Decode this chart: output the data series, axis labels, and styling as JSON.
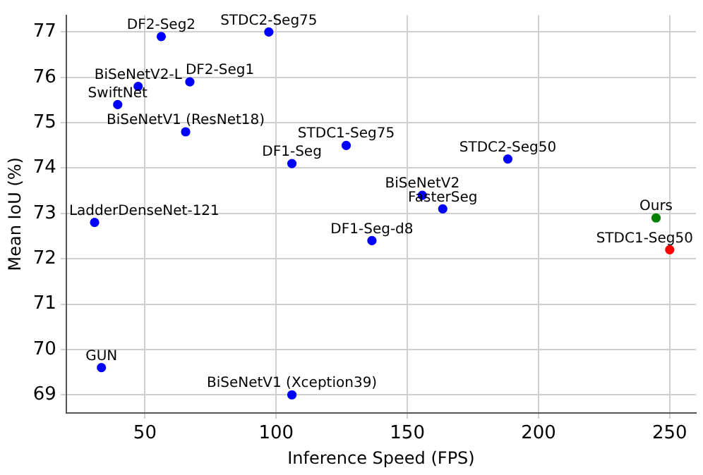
{
  "chart_data": {
    "type": "scatter",
    "xlabel": "Inference Speed (FPS)",
    "ylabel": "Mean IoU (%)",
    "xlim": [
      20,
      260
    ],
    "ylim": [
      68.6,
      77.37
    ],
    "xticks": [
      50,
      100,
      150,
      200,
      250
    ],
    "yticks": [
      69,
      70,
      71,
      72,
      73,
      74,
      75,
      76,
      77
    ],
    "grid": true,
    "legend": false,
    "marker": "circle",
    "series": [
      {
        "color": "#0000ff",
        "x": [
          56.2,
          97.2,
          47.4,
          67.1,
          39.6,
          65.5,
          126.7,
          106,
          188.3,
          30.8,
          155.7,
          163.5,
          136.5,
          33.4,
          106
        ],
        "values": [
          76.9,
          77.0,
          75.8,
          75.9,
          75.4,
          74.8,
          74.5,
          74.1,
          74.2,
          72.8,
          73.4,
          73.1,
          72.4,
          69.6,
          69.0
        ]
      },
      {
        "color": "#008000",
        "x": [
          244.8
        ],
        "values": [
          72.9
        ]
      },
      {
        "color": "#ff0000",
        "x": [
          250
        ],
        "values": [
          72.2
        ]
      }
    ],
    "annotations": [
      {
        "text": "DF2-Seg2",
        "x": 56.2,
        "y": 76.9
      },
      {
        "text": "STDC2-Seg75",
        "x": 97.2,
        "y": 77.0
      },
      {
        "text": "BiSeNetV2-L",
        "x": 47.4,
        "y": 75.8
      },
      {
        "text": "DF2-Seg1",
        "x": 67.1,
        "y": 75.9
      },
      {
        "text": "SwiftNet",
        "x": 39.6,
        "y": 75.4
      },
      {
        "text": "BiSeNetV1 (ResNet18)",
        "x": 65.5,
        "y": 74.8
      },
      {
        "text": "STDC1-Seg75",
        "x": 126.7,
        "y": 74.5
      },
      {
        "text": "DF1-Seg",
        "x": 106,
        "y": 74.1
      },
      {
        "text": "STDC2-Seg50",
        "x": 188.3,
        "y": 74.2
      },
      {
        "text": "LadderDenseNet-121",
        "x": 30.8,
        "y": 72.8
      },
      {
        "text": "BiSeNetV2",
        "x": 155.7,
        "y": 73.4
      },
      {
        "text": "FasterSeg",
        "x": 163.5,
        "y": 73.1
      },
      {
        "text": "DF1-Seg-d8",
        "x": 136.5,
        "y": 72.4
      },
      {
        "text": "GUN",
        "x": 33.4,
        "y": 69.6
      },
      {
        "text": "BiSeNetV1 (Xception39)",
        "x": 106,
        "y": 69.0
      },
      {
        "text": "Ours",
        "x": 244.8,
        "y": 72.9
      },
      {
        "text": "STDC1-Seg50",
        "x": 250,
        "y": 72.2
      }
    ]
  }
}
